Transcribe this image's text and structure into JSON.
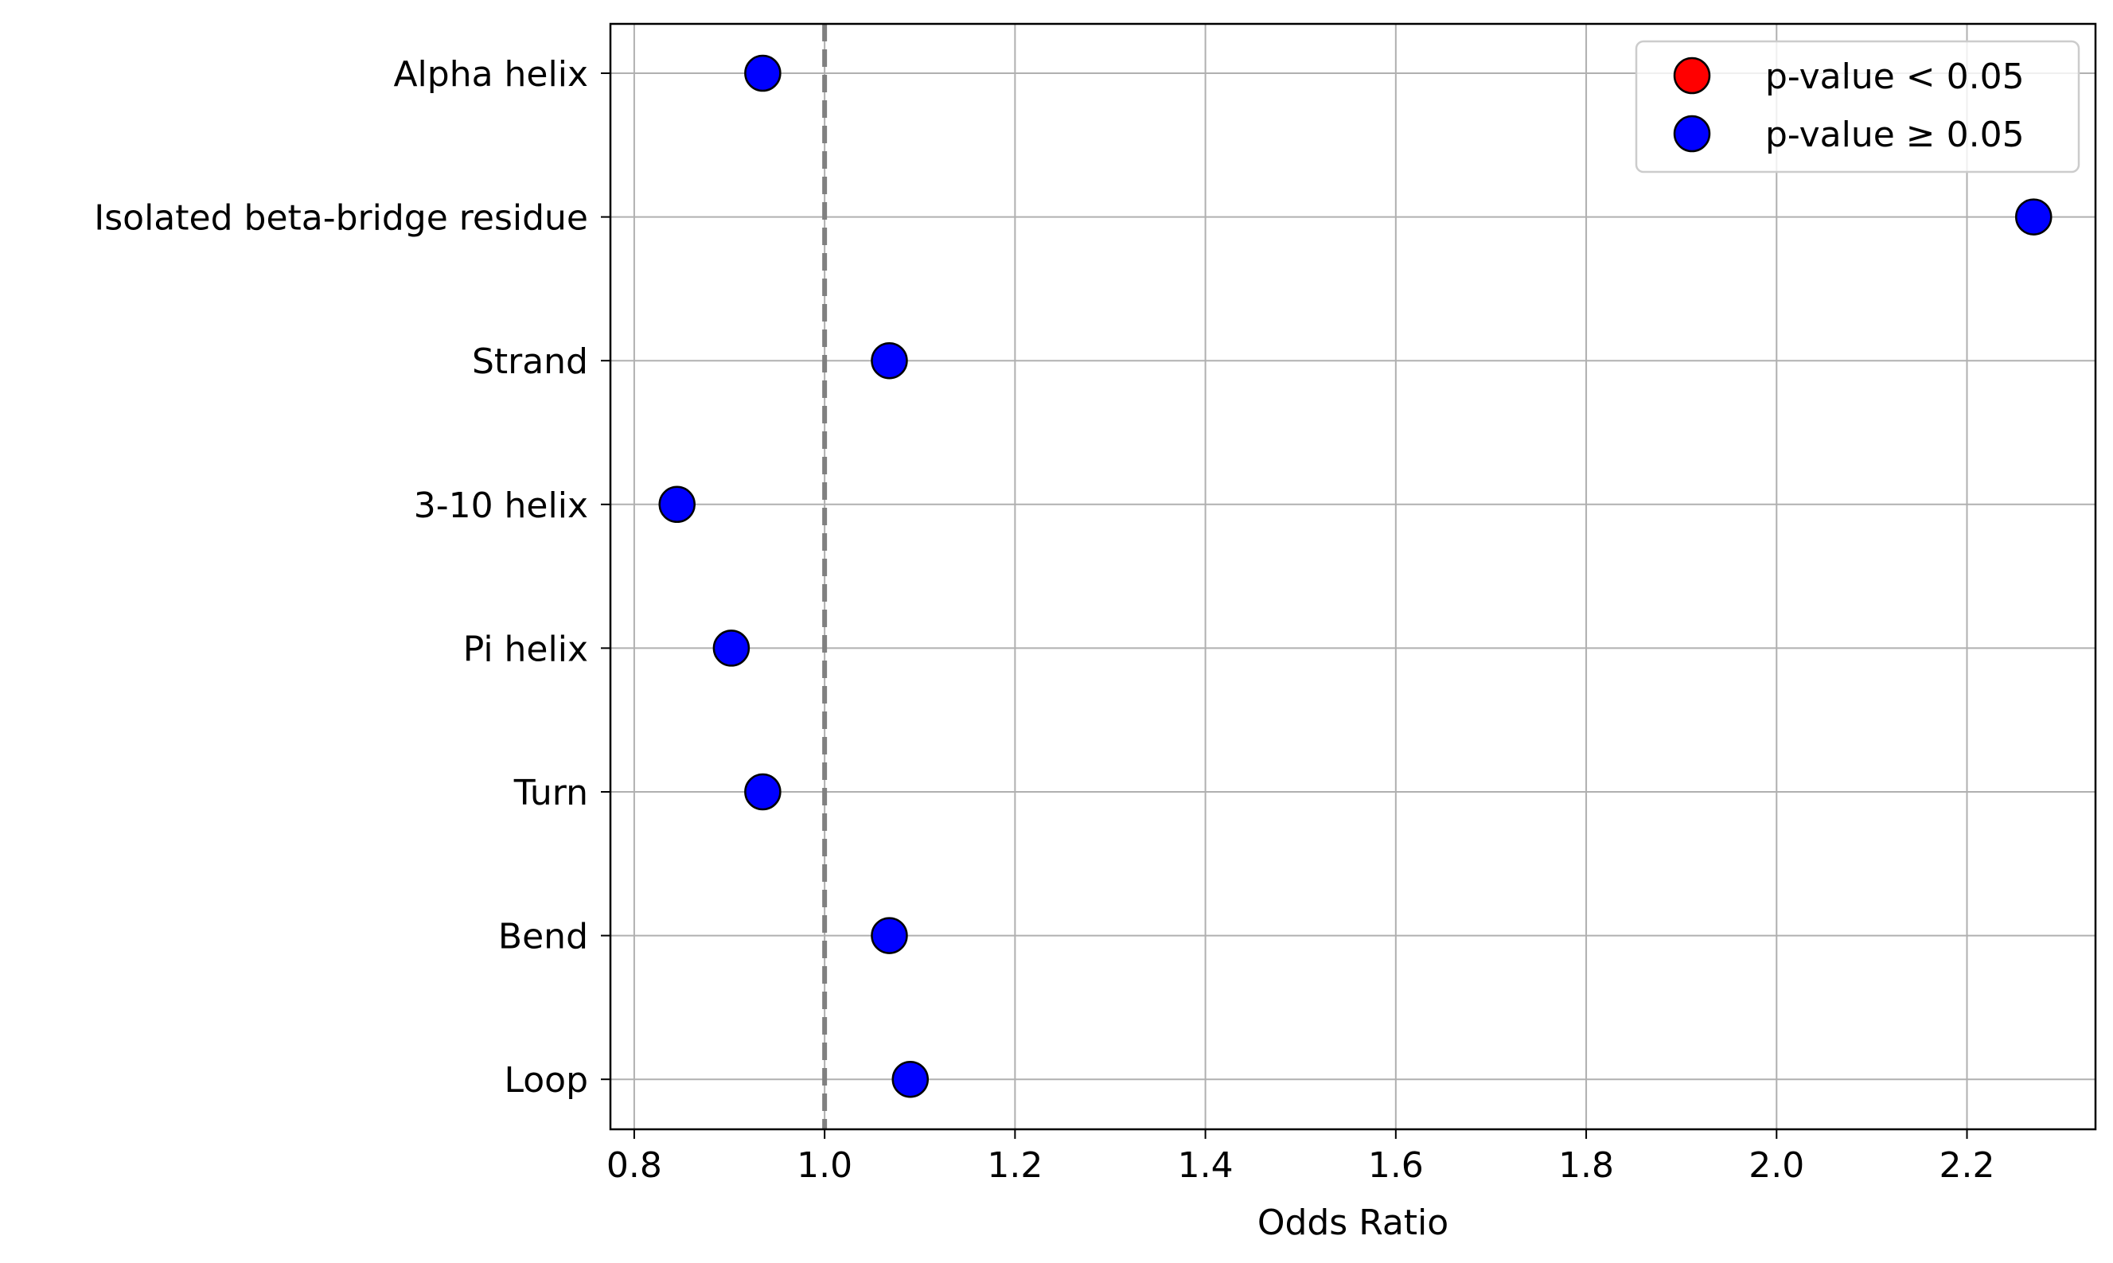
{
  "chart_data": {
    "type": "scatter",
    "title": "",
    "xlabel": "Odds Ratio",
    "ylabel": "",
    "xlim": [
      0.775,
      2.335
    ],
    "xticks": [
      0.8,
      1.0,
      1.2,
      1.4,
      1.6,
      1.8,
      2.0,
      2.2
    ],
    "xtick_labels": [
      "0.8",
      "1.0",
      "1.2",
      "1.4",
      "1.6",
      "1.8",
      "2.0",
      "2.2"
    ],
    "categories": [
      "Alpha helix",
      "Isolated beta-bridge residue",
      "Strand",
      "3-10 helix",
      "Pi helix",
      "Turn",
      "Bend",
      "Loop"
    ],
    "values": [
      0.935,
      2.27,
      1.068,
      0.845,
      0.902,
      0.935,
      1.068,
      1.09
    ],
    "significant": [
      false,
      false,
      false,
      false,
      false,
      false,
      false,
      false
    ],
    "reference_line": {
      "x": 1.0,
      "style": "dashed",
      "color": "#808080"
    },
    "grid": true,
    "legend": {
      "placement": "top-right",
      "entries": [
        {
          "label": "p-value < 0.05",
          "color": "#ff0000"
        },
        {
          "label": "p-value ≥ 0.05",
          "color": "#0000ff"
        }
      ]
    },
    "colors": {
      "significant": "#ff0000",
      "not_significant": "#0000ff",
      "marker_edge": "#000000",
      "grid": "#b0b0b0"
    }
  }
}
